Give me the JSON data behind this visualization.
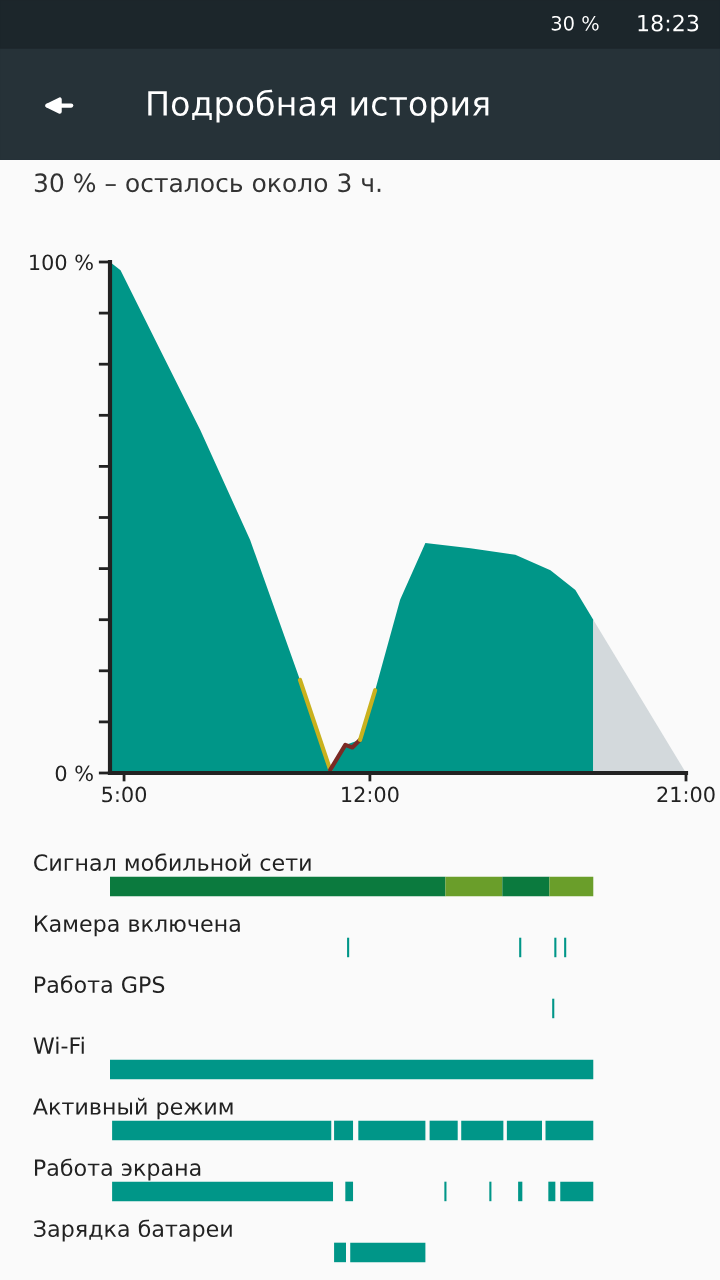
{
  "chart_data": [
    {
      "type": "area",
      "title": "Подробная история",
      "subtitle": "30 % – осталось около 3 ч.",
      "annotations": [
        "30 %",
        "18:23"
      ],
      "xlim": [
        4.6,
        21.0
      ],
      "ylim": [
        0,
        100
      ],
      "xticks": [
        {
          "value": 5,
          "label": "5:00"
        },
        {
          "value": 12,
          "label": "12:00"
        },
        {
          "value": 21,
          "label": "21:00"
        }
      ],
      "yticks": [
        {
          "value": 0,
          "label": "0 %"
        },
        {
          "value": 10,
          "label": null
        },
        {
          "value": 20,
          "label": null
        },
        {
          "value": 30,
          "label": null
        },
        {
          "value": 40,
          "label": null
        },
        {
          "value": 50,
          "label": null
        },
        {
          "value": 60,
          "label": null
        },
        {
          "value": 70,
          "label": null
        },
        {
          "value": 80,
          "label": null
        },
        {
          "value": 90,
          "label": null
        },
        {
          "value": 100,
          "label": "100 %"
        }
      ],
      "series": [
        {
          "color": "#009688",
          "x": [
            4.6,
            4.9,
            6.03,
            7.17,
            8.59,
            10.01,
            10.87,
            11.3,
            11.72,
            12.15,
            12.86,
            13.58,
            14.86,
            16.14,
            17.14,
            17.85,
            18.36
          ],
          "values": [
            100,
            98.4,
            82.8,
            67.1,
            45.6,
            18.2,
            0.6,
            5.5,
            6.5,
            16.2,
            33.9,
            45,
            44,
            42.7,
            39.7,
            35.8,
            30
          ]
        },
        {
          "type": "area",
          "color": "#d3d9dc",
          "x": [
            18.36,
            21.0
          ],
          "values": [
            30,
            0
          ]
        },
        {
          "type": "line",
          "color": "#c9b11e",
          "x": [
            10.01,
            10.87
          ],
          "values": [
            18.2,
            0.6
          ]
        },
        {
          "type": "line",
          "color": "#7b2a25",
          "x": [
            10.87,
            11.3,
            11.5,
            11.72
          ],
          "values": [
            0.6,
            5.5,
            5,
            6.5
          ]
        },
        {
          "type": "line",
          "color": "#c9b11e",
          "x": [
            11.72,
            12.15
          ],
          "values": [
            6.5,
            16.2
          ]
        }
      ]
    },
    {
      "type": "bar",
      "orientation": "horizontal",
      "tick_labels": "y",
      "xlim": [
        4.6,
        21.0
      ],
      "categories": [
        "Сигнал мобильной сети",
        "Камера включена",
        "Работа GPS",
        "Wi-Fi",
        "Активный режим",
        "Работа экрана",
        "Зарядка батареи"
      ],
      "series": [
        {
          "base": [
            4.6,
            11.35,
            17.19,
            4.6,
            4.66,
            4.66,
            10.98
          ],
          "values": [
            9.55,
            0.06,
            0.06,
            13.76,
            6.24,
            6.29,
            0.34
          ],
          "colors": [
            "#0b7a3e",
            "#009688",
            "#009688",
            "#009688",
            "#009688",
            "#009688",
            "#009688"
          ]
        },
        {
          "base": [
            14.15,
            16.25,
            null,
            null,
            10.98,
            11.3,
            11.44
          ],
          "values": [
            1.62,
            0.06,
            null,
            null,
            0.54,
            0.22,
            2.14
          ],
          "colors": [
            "#6a9e2a",
            "#009688",
            "#009688",
            "#009688",
            "#009688",
            "#009688",
            "#009688"
          ]
        },
        {
          "base": [
            15.77,
            17.25,
            null,
            null,
            11.67,
            14.12,
            null
          ],
          "values": [
            1.34,
            0.06,
            null,
            null,
            1.91,
            0.06,
            null
          ],
          "colors": [
            "#0b7a3e",
            "#009688",
            "#009688",
            "#009688",
            "#009688",
            "#009688",
            "#009688"
          ]
        },
        {
          "base": [
            17.11,
            17.53,
            null,
            null,
            13.7,
            15.4,
            null
          ],
          "values": [
            1.25,
            0.06,
            null,
            null,
            0.8,
            0.06,
            null
          ],
          "colors": [
            "#6a9e2a",
            "#009688",
            "#009688",
            "#009688",
            "#009688",
            "#009688",
            "#009688"
          ]
        },
        {
          "base": [
            null,
            null,
            null,
            null,
            14.6,
            16.22,
            null
          ],
          "values": [
            null,
            null,
            null,
            null,
            1.2,
            0.12,
            null
          ],
          "colors": [
            "#009688",
            "#009688",
            "#009688",
            "#009688",
            "#009688",
            "#009688",
            "#009688"
          ]
        },
        {
          "base": [
            null,
            null,
            null,
            null,
            15.9,
            17.08,
            null
          ],
          "values": [
            null,
            null,
            null,
            null,
            1.0,
            0.2,
            null
          ],
          "colors": [
            "#009688",
            "#009688",
            "#009688",
            "#009688",
            "#009688",
            "#009688",
            "#009688"
          ]
        },
        {
          "base": [
            null,
            null,
            null,
            null,
            17.0,
            17.42,
            null
          ],
          "values": [
            null,
            null,
            null,
            null,
            1.36,
            0.94,
            null
          ],
          "colors": [
            "#009688",
            "#009688",
            "#009688",
            "#009688",
            "#009688",
            "#009688",
            "#009688"
          ]
        }
      ]
    }
  ]
}
